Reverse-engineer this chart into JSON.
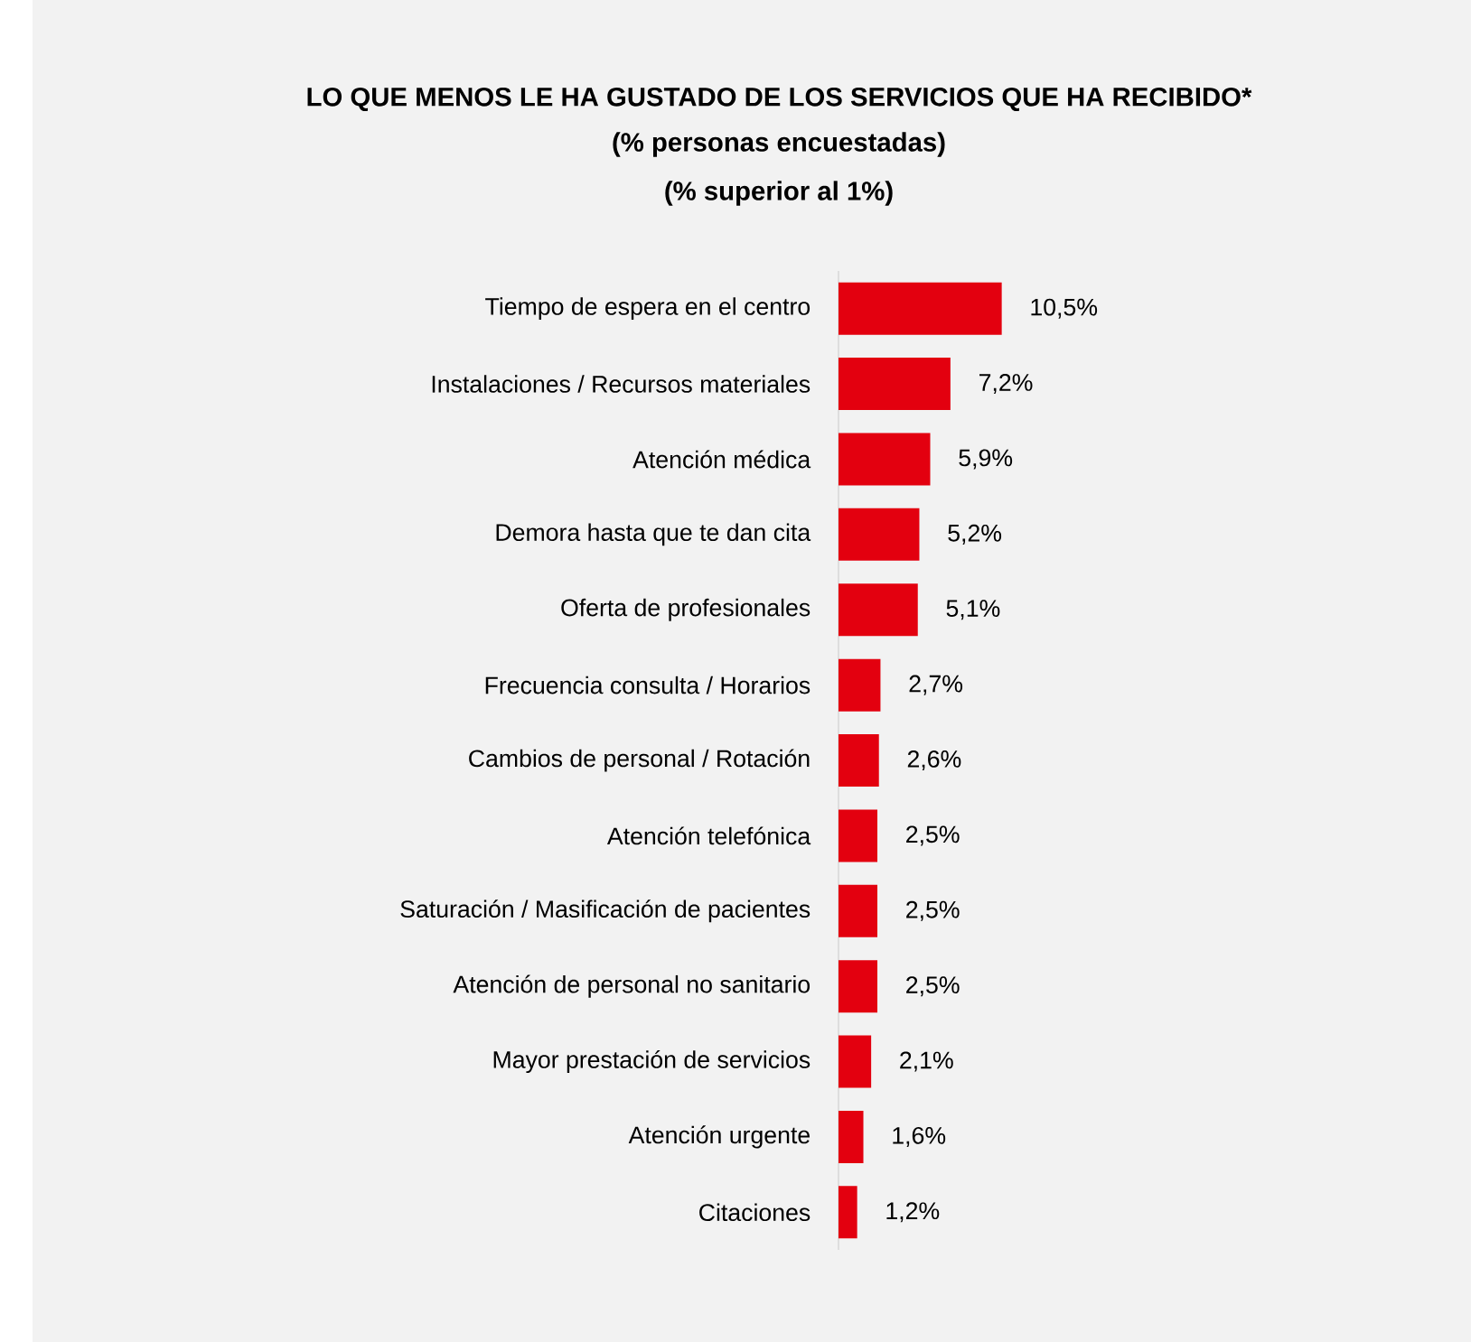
{
  "chart_data": {
    "type": "bar",
    "orientation": "horizontal",
    "title": "LO QUE MENOS LE HA GUSTADO DE LOS SERVICIOS QUE HA RECIBIDO*",
    "subtitle": "(% personas encuestadas)",
    "annotations": [
      "(% superior al 1%)"
    ],
    "categories": [
      "Tiempo de espera en el centro",
      "Instalaciones / Recursos materiales",
      "Atención médica",
      "Demora hasta que te dan cita",
      "Oferta de profesionales",
      "Frecuencia consulta / Horarios",
      "Cambios de personal / Rotación",
      "Atención telefónica",
      "Saturación / Masificación de pacientes",
      "Atención de personal no sanitario",
      "Mayor prestación de servicios",
      "Atención urgente",
      "Citaciones"
    ],
    "values": [
      10.5,
      7.2,
      5.9,
      5.2,
      5.1,
      2.7,
      2.6,
      2.5,
      2.5,
      2.5,
      2.1,
      1.6,
      1.2
    ],
    "value_labels": [
      "10,5%",
      "7,2%",
      "5,9%",
      "5,2%",
      "5,1%",
      "2,7%",
      "2,6%",
      "2,5%",
      "2,5%",
      "2,5%",
      "2,1%",
      "1,6%",
      "1,2%"
    ],
    "color": "#e3000f"
  }
}
